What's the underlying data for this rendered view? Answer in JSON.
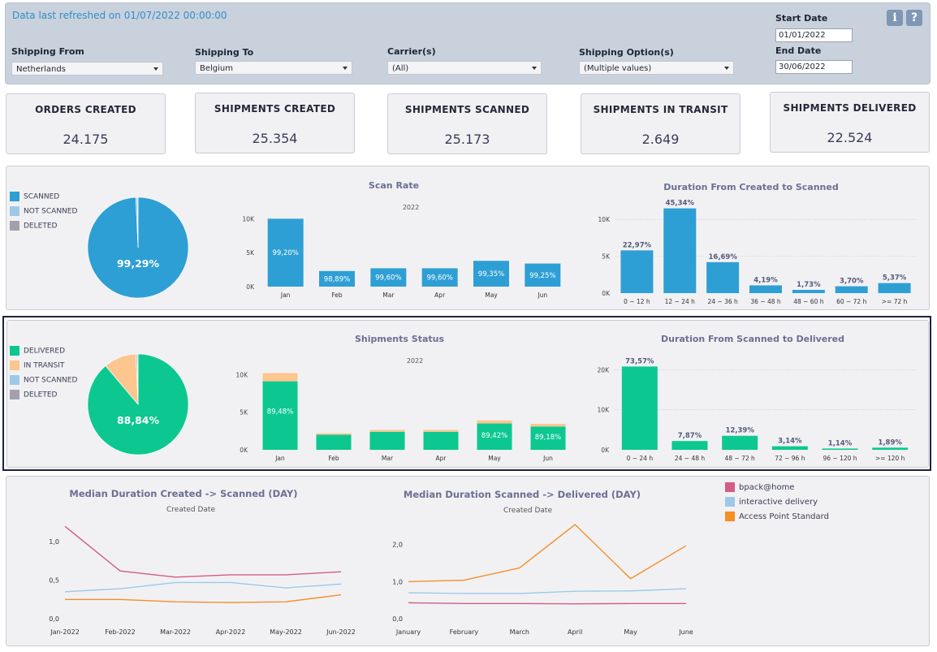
{
  "header": {
    "refreshed": "Data last refreshed on 01/07/2022 00:00:00",
    "info_icon": "i",
    "help_icon": "?"
  },
  "filters": {
    "shipping_from": {
      "label": "Shipping From",
      "value": "Netherlands"
    },
    "shipping_to": {
      "label": "Shipping To",
      "value": "Belgium"
    },
    "carriers": {
      "label": "Carrier(s)",
      "value": "(All)"
    },
    "options": {
      "label": "Shipping Option(s)",
      "value": "(Multiple values)"
    },
    "start_date": {
      "label": "Start Date",
      "value": "01/01/2022"
    },
    "end_date": {
      "label": "End Date",
      "value": "30/06/2022"
    }
  },
  "kpis": [
    {
      "title": "ORDERS CREATED",
      "value": "24.175"
    },
    {
      "title": "SHIPMENTS CREATED",
      "value": "25.354"
    },
    {
      "title": "SHIPMENTS SCANNED",
      "value": "25.173"
    },
    {
      "title": "SHIPMENTS IN TRANSIT",
      "value": "2.649"
    },
    {
      "title": "SHIPMENTS DELIVERED",
      "value": "22.524"
    }
  ],
  "colors": {
    "scanned": "#2e9fd4",
    "not_scanned": "#9ec9e6",
    "deleted": "#a3a0ae",
    "delivered": "#0cc890",
    "in_transit": "#fcc68e",
    "bpack": "#d45c85",
    "interactive": "#9ec9e6",
    "access_point": "#f68e23"
  },
  "scan_legend": [
    "SCANNED",
    "NOT SCANNED",
    "DELETED"
  ],
  "status_legend": [
    "DELIVERED",
    "IN TRANSIT",
    "NOT SCANNED",
    "DELETED"
  ],
  "line_legend": [
    "bpack@home",
    "interactive delivery",
    "Access Point Standard"
  ],
  "chart_data": [
    {
      "type": "pie",
      "categories": [
        "SCANNED",
        "NOT SCANNED",
        "DELETED"
      ],
      "values": [
        99.29,
        0.5,
        0.21
      ],
      "label": "99,29%"
    },
    {
      "type": "bar",
      "title": "Scan Rate",
      "subtitle": "2022",
      "categories": [
        "Jan",
        "Feb",
        "Mar",
        "Apr",
        "May",
        "Jun"
      ],
      "values": [
        10000,
        2300,
        2700,
        2700,
        3800,
        3400
      ],
      "data_labels": [
        "99,20%",
        "98,89%",
        "99,60%",
        "99,60%",
        "99,35%",
        "99,25%"
      ],
      "ylim": [
        0,
        11000
      ],
      "yticks": [
        0,
        5000,
        10000
      ],
      "yticklabels": [
        "0K",
        "5K",
        "10K"
      ]
    },
    {
      "type": "bar",
      "title": "Duration From Created to Scanned",
      "categories": [
        "0 ~ 12 h",
        "12 ~ 24 h",
        "24 ~ 36 h",
        "36 ~ 48 h",
        "48 ~ 60 h",
        "60 ~ 72 h",
        ">= 72 h"
      ],
      "values": [
        5800,
        11500,
        4200,
        1050,
        440,
        930,
        1360
      ],
      "data_labels": [
        "22,97%",
        "45,34%",
        "16,69%",
        "4,19%",
        "1,73%",
        "3,70%",
        "5,37%"
      ],
      "ylim": [
        0,
        13000
      ],
      "yticks": [
        0,
        5000,
        10000
      ],
      "yticklabels": [
        "0K",
        "5K",
        "10K"
      ]
    },
    {
      "type": "pie",
      "categories": [
        "DELIVERED",
        "IN TRANSIT",
        "NOT SCANNED",
        "DELETED"
      ],
      "values": [
        88.84,
        10.5,
        0.45,
        0.21
      ],
      "label": "88,84%"
    },
    {
      "type": "bar",
      "title": "Shipments Status",
      "subtitle": "2022",
      "categories": [
        "Jan",
        "Feb",
        "Mar",
        "Apr",
        "May",
        "Jun"
      ],
      "series": [
        {
          "name": "DELIVERED",
          "values": [
            9100,
            2000,
            2400,
            2400,
            3500,
            3100
          ]
        },
        {
          "name": "IN TRANSIT",
          "values": [
            1100,
            200,
            250,
            250,
            400,
            350
          ]
        }
      ],
      "data_labels": [
        "89,48%",
        "",
        "",
        "",
        "89,42%",
        "89,18%"
      ],
      "ylim": [
        0,
        11000
      ],
      "yticks": [
        0,
        5000,
        10000
      ],
      "yticklabels": [
        "0K",
        "5K",
        "10K"
      ]
    },
    {
      "type": "bar",
      "title": "Duration From Scanned to Delivered",
      "categories": [
        "0 ~ 24 h",
        "24 ~ 48 h",
        "48 ~ 72 h",
        "72 ~ 96 h",
        "96 ~ 120 h",
        ">= 120 h"
      ],
      "values": [
        20800,
        2200,
        3500,
        890,
        320,
        540
      ],
      "data_labels": [
        "73,57%",
        "7,87%",
        "12,39%",
        "3,14%",
        "1,14%",
        "1,89%"
      ],
      "ylim": [
        0,
        22500
      ],
      "yticks": [
        0,
        10000,
        20000
      ],
      "yticklabels": [
        "0K",
        "10K",
        "20K"
      ]
    },
    {
      "type": "line",
      "title": "Median Duration Created -> Scanned (DAY)",
      "subtitle": "Created Date",
      "x": [
        "Jan-2022",
        "Feb-2022",
        "Mar-2022",
        "Apr-2022",
        "May-2022",
        "Jun-2022"
      ],
      "series": [
        {
          "name": "bpack@home",
          "values": [
            1.2,
            0.62,
            0.54,
            0.57,
            0.57,
            0.61
          ]
        },
        {
          "name": "interactive delivery",
          "values": [
            0.35,
            0.39,
            0.47,
            0.47,
            0.4,
            0.45
          ]
        },
        {
          "name": "Access Point Standard",
          "values": [
            0.25,
            0.25,
            0.22,
            0.21,
            0.22,
            0.31
          ]
        }
      ],
      "ylim": [
        0,
        1.35
      ],
      "yticks": [
        0,
        0.5,
        1.0
      ],
      "yticklabels": [
        "0,0",
        "0,5",
        "1,0"
      ]
    },
    {
      "type": "line",
      "title": "Median Duration Scanned -> Delivered (DAY)",
      "subtitle": "Created Date",
      "x": [
        "January",
        "February",
        "March",
        "April",
        "May",
        "June"
      ],
      "series": [
        {
          "name": "bpack@home",
          "values": [
            0.43,
            0.41,
            0.41,
            0.4,
            0.41,
            0.41
          ]
        },
        {
          "name": "interactive delivery",
          "values": [
            0.7,
            0.68,
            0.68,
            0.74,
            0.75,
            0.81
          ]
        },
        {
          "name": "Access Point Standard",
          "values": [
            1.0,
            1.04,
            1.37,
            2.54,
            1.08,
            1.97
          ]
        }
      ],
      "ylim": [
        0,
        2.65
      ],
      "yticks": [
        0,
        1.0,
        2.0
      ],
      "yticklabels": [
        "0,0",
        "1,0",
        "2,0"
      ]
    }
  ]
}
